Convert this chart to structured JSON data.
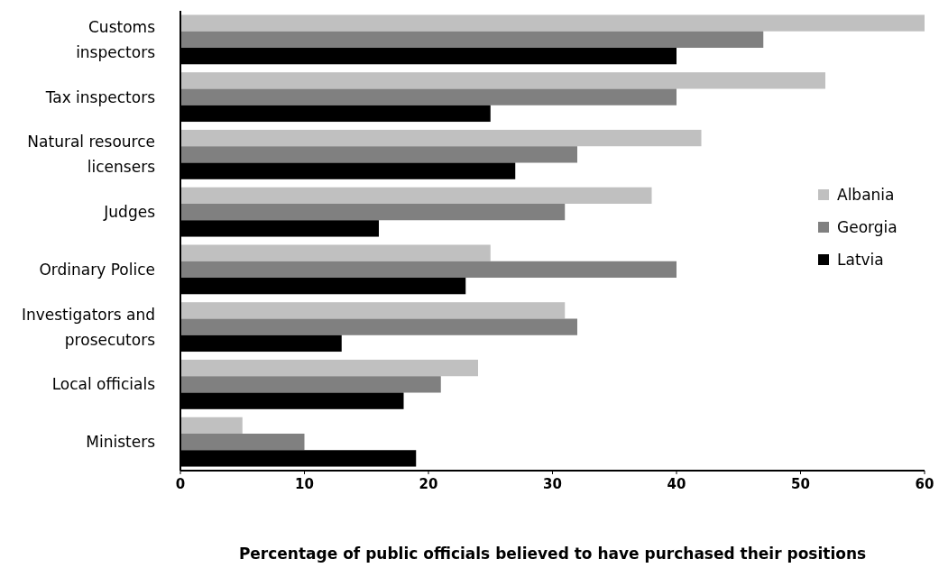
{
  "chart_data": {
    "type": "bar",
    "orientation": "horizontal",
    "xlabel": "Percentage of public officials believed to have purchased their positions",
    "categories": [
      "Customs\ninspectors",
      "Tax inspectors",
      "Natural resource\nlicensers",
      "Judges",
      "Ordinary Police",
      "Investigators and\nprosecutors",
      "Local officials",
      "Ministers"
    ],
    "series": [
      {
        "name": "Albania",
        "color": "#c0c0c0",
        "values": [
          60,
          52,
          42,
          38,
          25,
          31,
          24,
          5
        ]
      },
      {
        "name": "Georgia",
        "color": "#808080",
        "values": [
          47,
          40,
          32,
          31,
          40,
          32,
          21,
          10
        ]
      },
      {
        "name": "Latvia",
        "color": "#000000",
        "values": [
          40,
          25,
          27,
          16,
          23,
          13,
          18,
          19
        ]
      }
    ],
    "xlim": [
      0,
      60
    ],
    "xticks": [
      0,
      10,
      20,
      30,
      40,
      50,
      60
    ],
    "legend": "right",
    "grid": false
  }
}
